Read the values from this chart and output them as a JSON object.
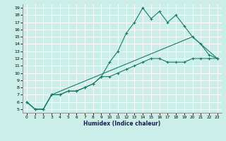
{
  "xlabel": "Humidex (Indice chaleur)",
  "bg_color": "#cceee8",
  "grid_color": "#ffffff",
  "line_color": "#1a7a6a",
  "xlim": [
    -0.5,
    23.5
  ],
  "ylim": [
    4.5,
    19.5
  ],
  "xticks": [
    0,
    1,
    2,
    3,
    4,
    5,
    6,
    7,
    8,
    9,
    10,
    11,
    12,
    13,
    14,
    15,
    16,
    17,
    18,
    19,
    20,
    21,
    22,
    23
  ],
  "yticks": [
    5,
    6,
    7,
    8,
    9,
    10,
    11,
    12,
    13,
    14,
    15,
    16,
    17,
    18,
    19
  ],
  "line1_x": [
    0,
    1,
    2,
    3,
    4,
    5,
    6,
    7,
    8,
    9,
    10,
    11,
    12,
    13,
    14,
    15,
    16,
    17,
    18,
    19,
    20,
    21,
    22,
    23
  ],
  "line1_y": [
    6,
    5,
    5,
    7,
    7,
    7.5,
    7.5,
    8.0,
    8.5,
    9.5,
    11.5,
    13.0,
    15.5,
    17.0,
    19.0,
    17.5,
    18.5,
    17.0,
    18.0,
    16.5,
    15.0,
    14.0,
    12.5,
    12.0
  ],
  "line2_x": [
    0,
    1,
    2,
    3,
    4,
    5,
    6,
    7,
    8,
    9,
    10,
    11,
    12,
    13,
    14,
    15,
    16,
    17,
    18,
    19,
    20,
    21,
    22,
    23
  ],
  "line2_y": [
    6,
    5,
    5,
    7,
    7,
    7.5,
    7.5,
    8.0,
    8.5,
    9.5,
    9.5,
    10.0,
    10.5,
    11.0,
    11.5,
    12.0,
    12.0,
    11.5,
    11.5,
    11.5,
    12.0,
    12.0,
    12.0,
    12.0
  ],
  "line3_x": [
    0,
    1,
    2,
    3,
    20,
    23
  ],
  "line3_y": [
    6,
    5,
    5,
    7,
    15,
    12
  ]
}
